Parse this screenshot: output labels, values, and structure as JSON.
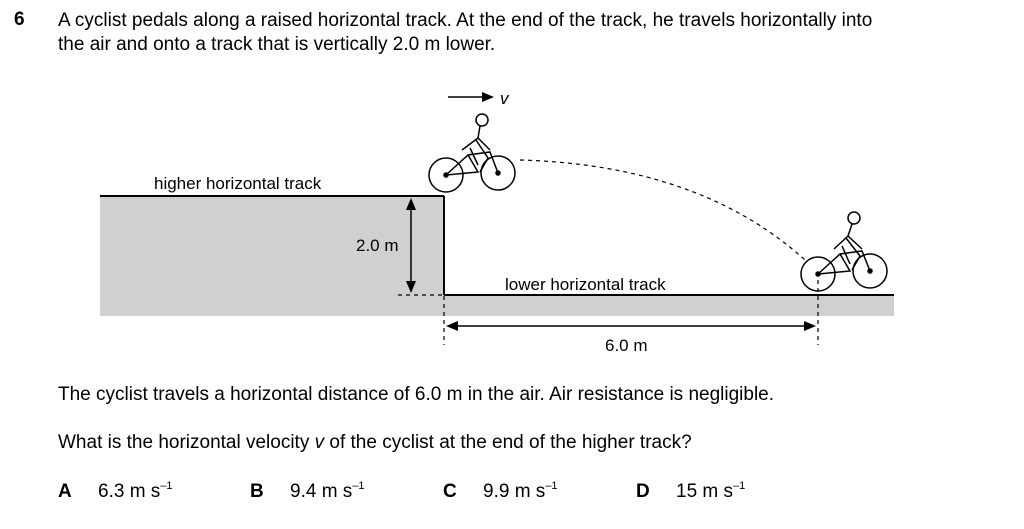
{
  "question": {
    "number": "6",
    "stem_line1": "A cyclist pedals along a raised horizontal track. At the end of the track, he travels horizontally into",
    "stem_line2": "the air and onto a track that is vertically 2.0 m lower."
  },
  "diagram": {
    "velocity_label": "v",
    "higher_track_label": "higher horizontal track",
    "height_label": "2.0 m",
    "lower_track_label": "lower horizontal track",
    "distance_label": "6.0 m"
  },
  "paragraph1": "The cyclist travels a horizontal distance of 6.0 m in the air. Air resistance is negligible.",
  "paragraph2": "What is the horizontal velocity v of the cyclist at the end of the higher track?",
  "options": [
    {
      "letter": "A",
      "value": "6.3 m s",
      "exp": "–1"
    },
    {
      "letter": "B",
      "value": "9.4 m s",
      "exp": "–1"
    },
    {
      "letter": "C",
      "value": "9.9 m s",
      "exp": "–1"
    },
    {
      "letter": "D",
      "value": "15 m s",
      "exp": "–1"
    }
  ]
}
